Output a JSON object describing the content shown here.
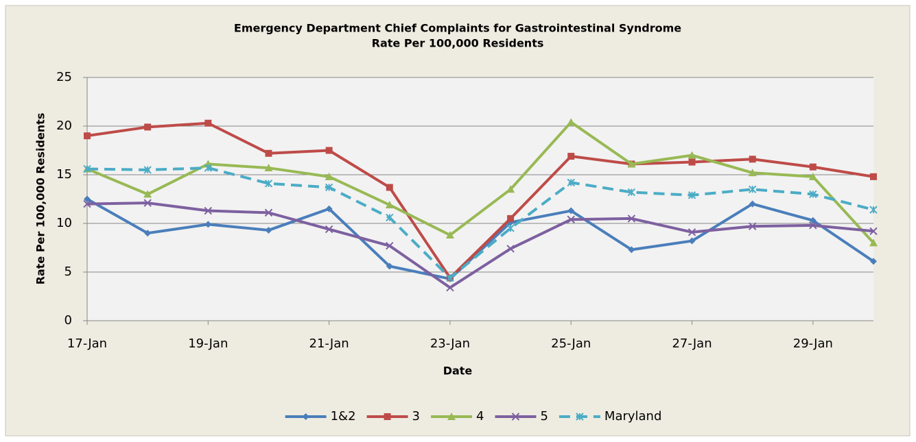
{
  "chart_data": {
    "type": "line",
    "title": "Emergency Department Chief Complaints for Gastrointestinal Syndrome",
    "subtitle": "Rate Per 100,000 Residents",
    "x_label": "Date",
    "y_label": "Rate Per 100,000 Residents",
    "categories": [
      "17-Jan",
      null,
      "19-Jan",
      null,
      "21-Jan",
      null,
      "23-Jan",
      null,
      "25-Jan",
      null,
      "27-Jan",
      null,
      "29-Jan",
      null
    ],
    "ylim": [
      0,
      25
    ],
    "yticks": [
      0,
      5,
      10,
      15,
      20,
      25
    ],
    "grid": true,
    "legend": "bottom",
    "series": [
      {
        "name": "1&2",
        "color": "#4a7ebb",
        "marker": "diamond",
        "dash": false,
        "values": [
          12.5,
          9.0,
          9.9,
          9.3,
          11.5,
          5.6,
          4.3,
          10.1,
          11.3,
          7.3,
          8.2,
          12.0,
          10.3,
          6.1
        ]
      },
      {
        "name": "3",
        "color": "#be4b48",
        "marker": "square",
        "dash": false,
        "values": [
          19.0,
          19.9,
          20.3,
          17.2,
          17.5,
          13.7,
          4.4,
          10.5,
          16.9,
          16.1,
          16.3,
          16.6,
          15.8,
          14.8
        ]
      },
      {
        "name": "4",
        "color": "#98b954",
        "marker": "triangle",
        "dash": false,
        "values": [
          15.6,
          13.0,
          16.1,
          15.7,
          14.8,
          11.9,
          8.8,
          13.5,
          20.4,
          16.1,
          17.0,
          15.2,
          14.8,
          8.0
        ]
      },
      {
        "name": "5",
        "color": "#7d60a0",
        "marker": "x",
        "dash": false,
        "values": [
          12.0,
          12.1,
          11.3,
          11.1,
          9.4,
          7.7,
          3.4,
          7.4,
          10.4,
          10.5,
          9.1,
          9.7,
          9.8,
          9.2
        ]
      },
      {
        "name": "Maryland",
        "color": "#4bacc6",
        "marker": "star",
        "dash": true,
        "values": [
          15.6,
          15.5,
          15.7,
          14.1,
          13.7,
          10.6,
          4.4,
          9.5,
          14.2,
          13.2,
          12.9,
          13.5,
          13.0,
          11.4
        ]
      }
    ]
  }
}
